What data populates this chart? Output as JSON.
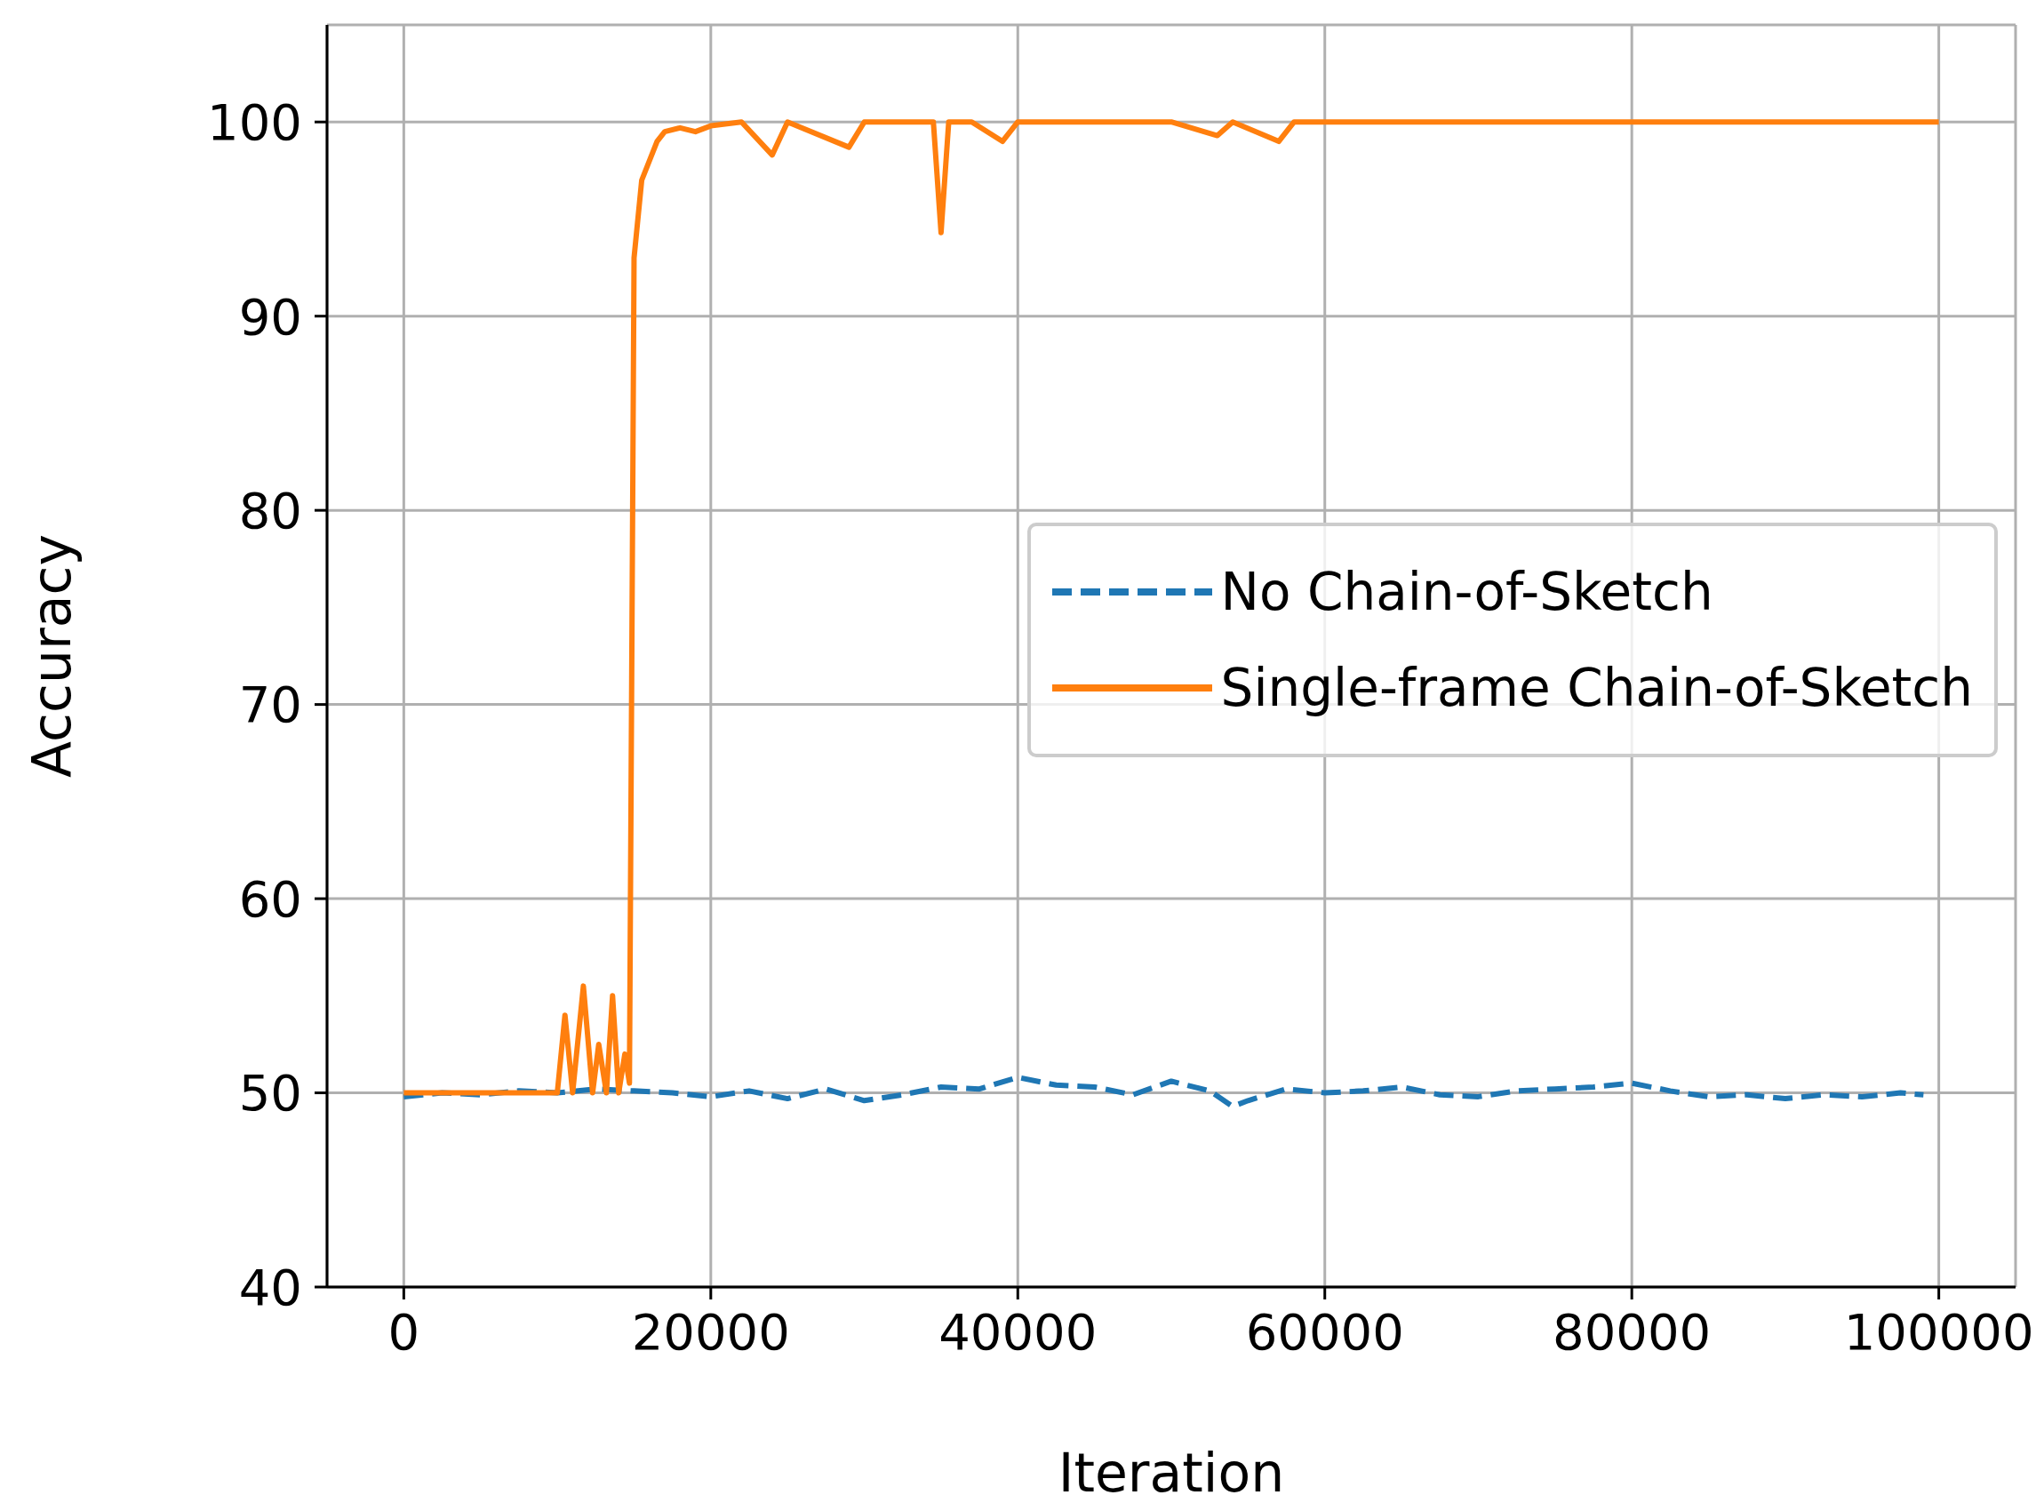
{
  "chart_data": {
    "type": "line",
    "xlabel": "Iteration",
    "ylabel": "Accuracy",
    "xlim": [
      -5000,
      105000
    ],
    "ylim": [
      40,
      105
    ],
    "xticks": [
      0,
      20000,
      40000,
      60000,
      80000,
      100000
    ],
    "yticks": [
      40,
      50,
      60,
      70,
      80,
      90,
      100
    ],
    "grid": true,
    "legend": "right",
    "marker": "none",
    "series": [
      {
        "name": "No Chain-of-Sketch",
        "color": "#1f77b4",
        "line_style": "dashed",
        "x": [
          0,
          2500,
          5000,
          7500,
          10000,
          12500,
          15000,
          17500,
          20000,
          22500,
          25000,
          27500,
          30000,
          32500,
          35000,
          37500,
          40000,
          42500,
          45000,
          47500,
          50000,
          52500,
          54000,
          55000,
          57500,
          60000,
          62500,
          65000,
          67500,
          70000,
          72500,
          75000,
          77500,
          80000,
          82500,
          85000,
          87500,
          90000,
          92500,
          95000,
          97500,
          99000
        ],
        "values": [
          49.8,
          50,
          49.9,
          50.1,
          50,
          50.2,
          50.1,
          50,
          49.8,
          50.1,
          49.7,
          50.2,
          49.6,
          49.9,
          50.3,
          50.2,
          50.8,
          50.4,
          50.3,
          49.9,
          50.6,
          50.1,
          49.3,
          49.6,
          50.2,
          50,
          50.1,
          50.3,
          49.9,
          49.8,
          50.1,
          50.2,
          50.3,
          50.5,
          50.1,
          49.8,
          49.9,
          49.7,
          49.9,
          49.8,
          50,
          49.9
        ]
      },
      {
        "name": "Single-frame Chain-of-Sketch",
        "color": "#ff7f0e",
        "line_style": "solid",
        "x": [
          0,
          2000,
          4000,
          6000,
          8000,
          10000,
          10500,
          11000,
          11700,
          12300,
          12700,
          13200,
          13600,
          14000,
          14400,
          14700,
          15000,
          15500,
          16500,
          17000,
          18000,
          19000,
          20000,
          22000,
          24000,
          25000,
          29000,
          30000,
          32000,
          34500,
          35000,
          35500,
          37000,
          39000,
          40000,
          45000,
          50000,
          53000,
          54000,
          57000,
          58000,
          60000,
          70000,
          80000,
          90000,
          100000
        ],
        "values": [
          50,
          50,
          50,
          50,
          50,
          50,
          54,
          50,
          55.5,
          50,
          52.5,
          50,
          55,
          50,
          52,
          50.5,
          93,
          97,
          99,
          99.5,
          99.7,
          99.5,
          99.8,
          100,
          98.3,
          100,
          98.7,
          100,
          100,
          100,
          94.3,
          100,
          100,
          99,
          100,
          100,
          100,
          99.3,
          100,
          99,
          100,
          100,
          100,
          100,
          100,
          100
        ]
      }
    ]
  }
}
